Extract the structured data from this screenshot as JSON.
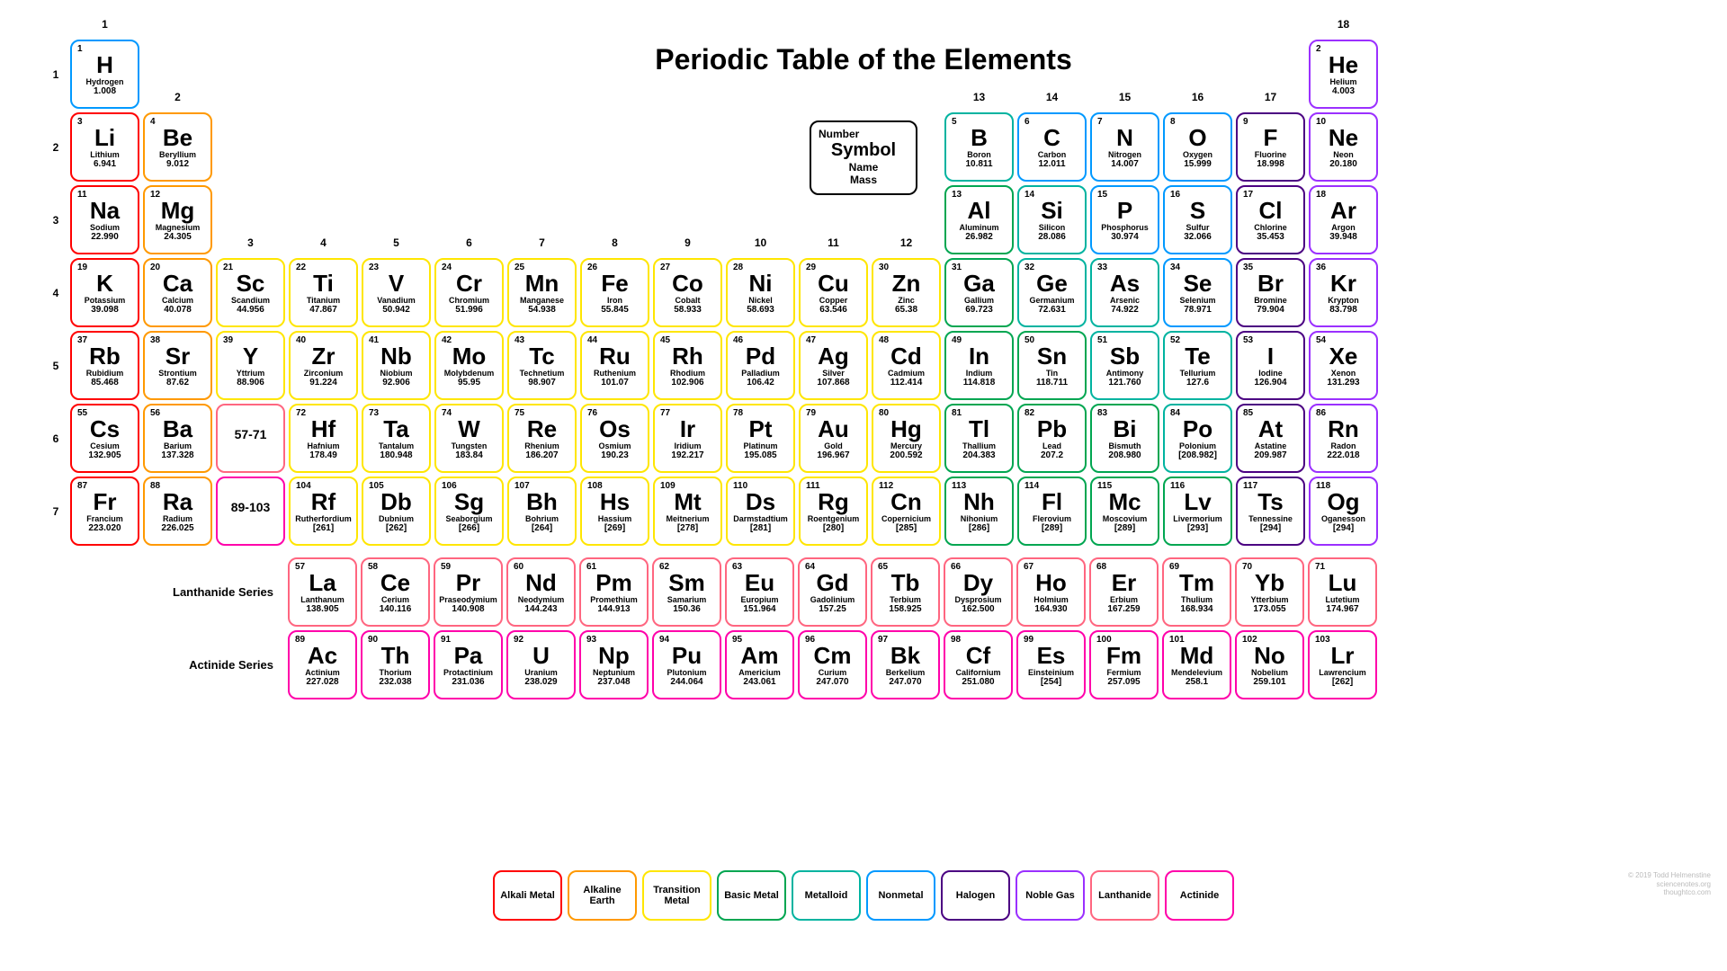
{
  "title": "Periodic Table of the Elements",
  "legend_key": {
    "num": "Number",
    "sym": "Symbol",
    "name": "Name",
    "mass": "Mass"
  },
  "group_count": 18,
  "period_count": 7,
  "fblock_labels": [
    "Lanthanide Series",
    "Actinide Series"
  ],
  "colors": {
    "alkali": "#ff0000",
    "alkaline": "#ff9900",
    "transition": "#ffe600",
    "basic": "#00a651",
    "metalloid": "#00b3a0",
    "nonmetal": "#0099ff",
    "halogen": "#4b0082",
    "noble": "#9b30ff",
    "lanthanide": "#ff6680",
    "actinide": "#ff00aa",
    "placeholder": "#ff6680",
    "placeholder2": "#ff00aa",
    "key": "#000000"
  },
  "legend_categories": [
    {
      "label": "Alkali Metal",
      "cat": "alkali"
    },
    {
      "label": "Alkaline Earth",
      "cat": "alkaline"
    },
    {
      "label": "Transition Metal",
      "cat": "transition"
    },
    {
      "label": "Basic Metal",
      "cat": "basic"
    },
    {
      "label": "Metalloid",
      "cat": "metalloid"
    },
    {
      "label": "Nonmetal",
      "cat": "nonmetal"
    },
    {
      "label": "Halogen",
      "cat": "halogen"
    },
    {
      "label": "Noble Gas",
      "cat": "noble"
    },
    {
      "label": "Lanthanide",
      "cat": "lanthanide"
    },
    {
      "label": "Actinide",
      "cat": "actinide"
    }
  ],
  "group_label_offsets": {
    "1": 0,
    "2": 1,
    "3": 3,
    "4": 3,
    "5": 3,
    "6": 3,
    "7": 3,
    "8": 3,
    "9": 3,
    "10": 3,
    "11": 3,
    "12": 3,
    "13": 1,
    "14": 1,
    "15": 1,
    "16": 1,
    "17": 1,
    "18": 0
  },
  "elements": [
    {
      "n": 1,
      "s": "H",
      "name": "Hydrogen",
      "m": "1.008",
      "g": 1,
      "p": 1,
      "cat": "nonmetal"
    },
    {
      "n": 2,
      "s": "He",
      "name": "Helium",
      "m": "4.003",
      "g": 18,
      "p": 1,
      "cat": "noble"
    },
    {
      "n": 3,
      "s": "Li",
      "name": "Lithium",
      "m": "6.941",
      "g": 1,
      "p": 2,
      "cat": "alkali"
    },
    {
      "n": 4,
      "s": "Be",
      "name": "Beryllium",
      "m": "9.012",
      "g": 2,
      "p": 2,
      "cat": "alkaline"
    },
    {
      "n": 5,
      "s": "B",
      "name": "Boron",
      "m": "10.811",
      "g": 13,
      "p": 2,
      "cat": "metalloid"
    },
    {
      "n": 6,
      "s": "C",
      "name": "Carbon",
      "m": "12.011",
      "g": 14,
      "p": 2,
      "cat": "nonmetal"
    },
    {
      "n": 7,
      "s": "N",
      "name": "Nitrogen",
      "m": "14.007",
      "g": 15,
      "p": 2,
      "cat": "nonmetal"
    },
    {
      "n": 8,
      "s": "O",
      "name": "Oxygen",
      "m": "15.999",
      "g": 16,
      "p": 2,
      "cat": "nonmetal"
    },
    {
      "n": 9,
      "s": "F",
      "name": "Fluorine",
      "m": "18.998",
      "g": 17,
      "p": 2,
      "cat": "halogen"
    },
    {
      "n": 10,
      "s": "Ne",
      "name": "Neon",
      "m": "20.180",
      "g": 18,
      "p": 2,
      "cat": "noble"
    },
    {
      "n": 11,
      "s": "Na",
      "name": "Sodium",
      "m": "22.990",
      "g": 1,
      "p": 3,
      "cat": "alkali"
    },
    {
      "n": 12,
      "s": "Mg",
      "name": "Magnesium",
      "m": "24.305",
      "g": 2,
      "p": 3,
      "cat": "alkaline"
    },
    {
      "n": 13,
      "s": "Al",
      "name": "Aluminum",
      "m": "26.982",
      "g": 13,
      "p": 3,
      "cat": "basic"
    },
    {
      "n": 14,
      "s": "Si",
      "name": "Silicon",
      "m": "28.086",
      "g": 14,
      "p": 3,
      "cat": "metalloid"
    },
    {
      "n": 15,
      "s": "P",
      "name": "Phosphorus",
      "m": "30.974",
      "g": 15,
      "p": 3,
      "cat": "nonmetal"
    },
    {
      "n": 16,
      "s": "S",
      "name": "Sulfur",
      "m": "32.066",
      "g": 16,
      "p": 3,
      "cat": "nonmetal"
    },
    {
      "n": 17,
      "s": "Cl",
      "name": "Chlorine",
      "m": "35.453",
      "g": 17,
      "p": 3,
      "cat": "halogen"
    },
    {
      "n": 18,
      "s": "Ar",
      "name": "Argon",
      "m": "39.948",
      "g": 18,
      "p": 3,
      "cat": "noble"
    },
    {
      "n": 19,
      "s": "K",
      "name": "Potassium",
      "m": "39.098",
      "g": 1,
      "p": 4,
      "cat": "alkali"
    },
    {
      "n": 20,
      "s": "Ca",
      "name": "Calcium",
      "m": "40.078",
      "g": 2,
      "p": 4,
      "cat": "alkaline"
    },
    {
      "n": 21,
      "s": "Sc",
      "name": "Scandium",
      "m": "44.956",
      "g": 3,
      "p": 4,
      "cat": "transition"
    },
    {
      "n": 22,
      "s": "Ti",
      "name": "Titanium",
      "m": "47.867",
      "g": 4,
      "p": 4,
      "cat": "transition"
    },
    {
      "n": 23,
      "s": "V",
      "name": "Vanadium",
      "m": "50.942",
      "g": 5,
      "p": 4,
      "cat": "transition"
    },
    {
      "n": 24,
      "s": "Cr",
      "name": "Chromium",
      "m": "51.996",
      "g": 6,
      "p": 4,
      "cat": "transition"
    },
    {
      "n": 25,
      "s": "Mn",
      "name": "Manganese",
      "m": "54.938",
      "g": 7,
      "p": 4,
      "cat": "transition"
    },
    {
      "n": 26,
      "s": "Fe",
      "name": "Iron",
      "m": "55.845",
      "g": 8,
      "p": 4,
      "cat": "transition"
    },
    {
      "n": 27,
      "s": "Co",
      "name": "Cobalt",
      "m": "58.933",
      "g": 9,
      "p": 4,
      "cat": "transition"
    },
    {
      "n": 28,
      "s": "Ni",
      "name": "Nickel",
      "m": "58.693",
      "g": 10,
      "p": 4,
      "cat": "transition"
    },
    {
      "n": 29,
      "s": "Cu",
      "name": "Copper",
      "m": "63.546",
      "g": 11,
      "p": 4,
      "cat": "transition"
    },
    {
      "n": 30,
      "s": "Zn",
      "name": "Zinc",
      "m": "65.38",
      "g": 12,
      "p": 4,
      "cat": "transition"
    },
    {
      "n": 31,
      "s": "Ga",
      "name": "Gallium",
      "m": "69.723",
      "g": 13,
      "p": 4,
      "cat": "basic"
    },
    {
      "n": 32,
      "s": "Ge",
      "name": "Germanium",
      "m": "72.631",
      "g": 14,
      "p": 4,
      "cat": "metalloid"
    },
    {
      "n": 33,
      "s": "As",
      "name": "Arsenic",
      "m": "74.922",
      "g": 15,
      "p": 4,
      "cat": "metalloid"
    },
    {
      "n": 34,
      "s": "Se",
      "name": "Selenium",
      "m": "78.971",
      "g": 16,
      "p": 4,
      "cat": "nonmetal"
    },
    {
      "n": 35,
      "s": "Br",
      "name": "Bromine",
      "m": "79.904",
      "g": 17,
      "p": 4,
      "cat": "halogen"
    },
    {
      "n": 36,
      "s": "Kr",
      "name": "Krypton",
      "m": "83.798",
      "g": 18,
      "p": 4,
      "cat": "noble"
    },
    {
      "n": 37,
      "s": "Rb",
      "name": "Rubidium",
      "m": "85.468",
      "g": 1,
      "p": 5,
      "cat": "alkali"
    },
    {
      "n": 38,
      "s": "Sr",
      "name": "Strontium",
      "m": "87.62",
      "g": 2,
      "p": 5,
      "cat": "alkaline"
    },
    {
      "n": 39,
      "s": "Y",
      "name": "Yttrium",
      "m": "88.906",
      "g": 3,
      "p": 5,
      "cat": "transition"
    },
    {
      "n": 40,
      "s": "Zr",
      "name": "Zirconium",
      "m": "91.224",
      "g": 4,
      "p": 5,
      "cat": "transition"
    },
    {
      "n": 41,
      "s": "Nb",
      "name": "Niobium",
      "m": "92.906",
      "g": 5,
      "p": 5,
      "cat": "transition"
    },
    {
      "n": 42,
      "s": "Mo",
      "name": "Molybdenum",
      "m": "95.95",
      "g": 6,
      "p": 5,
      "cat": "transition"
    },
    {
      "n": 43,
      "s": "Tc",
      "name": "Technetium",
      "m": "98.907",
      "g": 7,
      "p": 5,
      "cat": "transition"
    },
    {
      "n": 44,
      "s": "Ru",
      "name": "Ruthenium",
      "m": "101.07",
      "g": 8,
      "p": 5,
      "cat": "transition"
    },
    {
      "n": 45,
      "s": "Rh",
      "name": "Rhodium",
      "m": "102.906",
      "g": 9,
      "p": 5,
      "cat": "transition"
    },
    {
      "n": 46,
      "s": "Pd",
      "name": "Palladium",
      "m": "106.42",
      "g": 10,
      "p": 5,
      "cat": "transition"
    },
    {
      "n": 47,
      "s": "Ag",
      "name": "Silver",
      "m": "107.868",
      "g": 11,
      "p": 5,
      "cat": "transition"
    },
    {
      "n": 48,
      "s": "Cd",
      "name": "Cadmium",
      "m": "112.414",
      "g": 12,
      "p": 5,
      "cat": "transition"
    },
    {
      "n": 49,
      "s": "In",
      "name": "Indium",
      "m": "114.818",
      "g": 13,
      "p": 5,
      "cat": "basic"
    },
    {
      "n": 50,
      "s": "Sn",
      "name": "Tin",
      "m": "118.711",
      "g": 14,
      "p": 5,
      "cat": "basic"
    },
    {
      "n": 51,
      "s": "Sb",
      "name": "Antimony",
      "m": "121.760",
      "g": 15,
      "p": 5,
      "cat": "metalloid"
    },
    {
      "n": 52,
      "s": "Te",
      "name": "Tellurium",
      "m": "127.6",
      "g": 16,
      "p": 5,
      "cat": "metalloid"
    },
    {
      "n": 53,
      "s": "I",
      "name": "Iodine",
      "m": "126.904",
      "g": 17,
      "p": 5,
      "cat": "halogen"
    },
    {
      "n": 54,
      "s": "Xe",
      "name": "Xenon",
      "m": "131.293",
      "g": 18,
      "p": 5,
      "cat": "noble"
    },
    {
      "n": 55,
      "s": "Cs",
      "name": "Cesium",
      "m": "132.905",
      "g": 1,
      "p": 6,
      "cat": "alkali"
    },
    {
      "n": 56,
      "s": "Ba",
      "name": "Barium",
      "m": "137.328",
      "g": 2,
      "p": 6,
      "cat": "alkaline"
    },
    {
      "n": 72,
      "s": "Hf",
      "name": "Hafnium",
      "m": "178.49",
      "g": 4,
      "p": 6,
      "cat": "transition"
    },
    {
      "n": 73,
      "s": "Ta",
      "name": "Tantalum",
      "m": "180.948",
      "g": 5,
      "p": 6,
      "cat": "transition"
    },
    {
      "n": 74,
      "s": "W",
      "name": "Tungsten",
      "m": "183.84",
      "g": 6,
      "p": 6,
      "cat": "transition"
    },
    {
      "n": 75,
      "s": "Re",
      "name": "Rhenium",
      "m": "186.207",
      "g": 7,
      "p": 6,
      "cat": "transition"
    },
    {
      "n": 76,
      "s": "Os",
      "name": "Osmium",
      "m": "190.23",
      "g": 8,
      "p": 6,
      "cat": "transition"
    },
    {
      "n": 77,
      "s": "Ir",
      "name": "Iridium",
      "m": "192.217",
      "g": 9,
      "p": 6,
      "cat": "transition"
    },
    {
      "n": 78,
      "s": "Pt",
      "name": "Platinum",
      "m": "195.085",
      "g": 10,
      "p": 6,
      "cat": "transition"
    },
    {
      "n": 79,
      "s": "Au",
      "name": "Gold",
      "m": "196.967",
      "g": 11,
      "p": 6,
      "cat": "transition"
    },
    {
      "n": 80,
      "s": "Hg",
      "name": "Mercury",
      "m": "200.592",
      "g": 12,
      "p": 6,
      "cat": "transition"
    },
    {
      "n": 81,
      "s": "Tl",
      "name": "Thallium",
      "m": "204.383",
      "g": 13,
      "p": 6,
      "cat": "basic"
    },
    {
      "n": 82,
      "s": "Pb",
      "name": "Lead",
      "m": "207.2",
      "g": 14,
      "p": 6,
      "cat": "basic"
    },
    {
      "n": 83,
      "s": "Bi",
      "name": "Bismuth",
      "m": "208.980",
      "g": 15,
      "p": 6,
      "cat": "basic"
    },
    {
      "n": 84,
      "s": "Po",
      "name": "Polonium",
      "m": "[208.982]",
      "g": 16,
      "p": 6,
      "cat": "metalloid"
    },
    {
      "n": 85,
      "s": "At",
      "name": "Astatine",
      "m": "209.987",
      "g": 17,
      "p": 6,
      "cat": "halogen"
    },
    {
      "n": 86,
      "s": "Rn",
      "name": "Radon",
      "m": "222.018",
      "g": 18,
      "p": 6,
      "cat": "noble"
    },
    {
      "n": 87,
      "s": "Fr",
      "name": "Francium",
      "m": "223.020",
      "g": 1,
      "p": 7,
      "cat": "alkali"
    },
    {
      "n": 88,
      "s": "Ra",
      "name": "Radium",
      "m": "226.025",
      "g": 2,
      "p": 7,
      "cat": "alkaline"
    },
    {
      "n": 104,
      "s": "Rf",
      "name": "Rutherfordium",
      "m": "[261]",
      "g": 4,
      "p": 7,
      "cat": "transition"
    },
    {
      "n": 105,
      "s": "Db",
      "name": "Dubnium",
      "m": "[262]",
      "g": 5,
      "p": 7,
      "cat": "transition"
    },
    {
      "n": 106,
      "s": "Sg",
      "name": "Seaborgium",
      "m": "[266]",
      "g": 6,
      "p": 7,
      "cat": "transition"
    },
    {
      "n": 107,
      "s": "Bh",
      "name": "Bohrium",
      "m": "[264]",
      "g": 7,
      "p": 7,
      "cat": "transition"
    },
    {
      "n": 108,
      "s": "Hs",
      "name": "Hassium",
      "m": "[269]",
      "g": 8,
      "p": 7,
      "cat": "transition"
    },
    {
      "n": 109,
      "s": "Mt",
      "name": "Meitnerium",
      "m": "[278]",
      "g": 9,
      "p": 7,
      "cat": "transition"
    },
    {
      "n": 110,
      "s": "Ds",
      "name": "Darmstadtium",
      "m": "[281]",
      "g": 10,
      "p": 7,
      "cat": "transition"
    },
    {
      "n": 111,
      "s": "Rg",
      "name": "Roentgenium",
      "m": "[280]",
      "g": 11,
      "p": 7,
      "cat": "transition"
    },
    {
      "n": 112,
      "s": "Cn",
      "name": "Copernicium",
      "m": "[285]",
      "g": 12,
      "p": 7,
      "cat": "transition"
    },
    {
      "n": 113,
      "s": "Nh",
      "name": "Nihonium",
      "m": "[286]",
      "g": 13,
      "p": 7,
      "cat": "basic"
    },
    {
      "n": 114,
      "s": "Fl",
      "name": "Flerovium",
      "m": "[289]",
      "g": 14,
      "p": 7,
      "cat": "basic"
    },
    {
      "n": 115,
      "s": "Mc",
      "name": "Moscovium",
      "m": "[289]",
      "g": 15,
      "p": 7,
      "cat": "basic"
    },
    {
      "n": 116,
      "s": "Lv",
      "name": "Livermorium",
      "m": "[293]",
      "g": 16,
      "p": 7,
      "cat": "basic"
    },
    {
      "n": 117,
      "s": "Ts",
      "name": "Tennessine",
      "m": "[294]",
      "g": 17,
      "p": 7,
      "cat": "halogen"
    },
    {
      "n": 118,
      "s": "Og",
      "name": "Oganesson",
      "m": "[294]",
      "g": 18,
      "p": 7,
      "cat": "noble"
    }
  ],
  "placeholders": [
    {
      "label": "57-71",
      "g": 3,
      "p": 6,
      "cat": "lanthanide"
    },
    {
      "label": "89-103",
      "g": 3,
      "p": 7,
      "cat": "actinide"
    }
  ],
  "lanthanides": [
    {
      "n": 57,
      "s": "La",
      "name": "Lanthanum",
      "m": "138.905"
    },
    {
      "n": 58,
      "s": "Ce",
      "name": "Cerium",
      "m": "140.116"
    },
    {
      "n": 59,
      "s": "Pr",
      "name": "Praseodymium",
      "m": "140.908"
    },
    {
      "n": 60,
      "s": "Nd",
      "name": "Neodymium",
      "m": "144.243"
    },
    {
      "n": 61,
      "s": "Pm",
      "name": "Promethium",
      "m": "144.913"
    },
    {
      "n": 62,
      "s": "Sm",
      "name": "Samarium",
      "m": "150.36"
    },
    {
      "n": 63,
      "s": "Eu",
      "name": "Europium",
      "m": "151.964"
    },
    {
      "n": 64,
      "s": "Gd",
      "name": "Gadolinium",
      "m": "157.25"
    },
    {
      "n": 65,
      "s": "Tb",
      "name": "Terbium",
      "m": "158.925"
    },
    {
      "n": 66,
      "s": "Dy",
      "name": "Dysprosium",
      "m": "162.500"
    },
    {
      "n": 67,
      "s": "Ho",
      "name": "Holmium",
      "m": "164.930"
    },
    {
      "n": 68,
      "s": "Er",
      "name": "Erbium",
      "m": "167.259"
    },
    {
      "n": 69,
      "s": "Tm",
      "name": "Thulium",
      "m": "168.934"
    },
    {
      "n": 70,
      "s": "Yb",
      "name": "Ytterbium",
      "m": "173.055"
    },
    {
      "n": 71,
      "s": "Lu",
      "name": "Lutetium",
      "m": "174.967"
    }
  ],
  "actinides": [
    {
      "n": 89,
      "s": "Ac",
      "name": "Actinium",
      "m": "227.028"
    },
    {
      "n": 90,
      "s": "Th",
      "name": "Thorium",
      "m": "232.038"
    },
    {
      "n": 91,
      "s": "Pa",
      "name": "Protactinium",
      "m": "231.036"
    },
    {
      "n": 92,
      "s": "U",
      "name": "Uranium",
      "m": "238.029"
    },
    {
      "n": 93,
      "s": "Np",
      "name": "Neptunium",
      "m": "237.048"
    },
    {
      "n": 94,
      "s": "Pu",
      "name": "Plutonium",
      "m": "244.064"
    },
    {
      "n": 95,
      "s": "Am",
      "name": "Americium",
      "m": "243.061"
    },
    {
      "n": 96,
      "s": "Cm",
      "name": "Curium",
      "m": "247.070"
    },
    {
      "n": 97,
      "s": "Bk",
      "name": "Berkelium",
      "m": "247.070"
    },
    {
      "n": 98,
      "s": "Cf",
      "name": "Californium",
      "m": "251.080"
    },
    {
      "n": 99,
      "s": "Es",
      "name": "Einsteinium",
      "m": "[254]"
    },
    {
      "n": 100,
      "s": "Fm",
      "name": "Fermium",
      "m": "257.095"
    },
    {
      "n": 101,
      "s": "Md",
      "name": "Mendelevium",
      "m": "258.1"
    },
    {
      "n": 102,
      "s": "No",
      "name": "Nobelium",
      "m": "259.101"
    },
    {
      "n": 103,
      "s": "Lr",
      "name": "Lawrencium",
      "m": "[262]"
    }
  ],
  "credit": "© 2019 Todd Helmenstine\nsciencenotes.org\nthoughtco.com"
}
